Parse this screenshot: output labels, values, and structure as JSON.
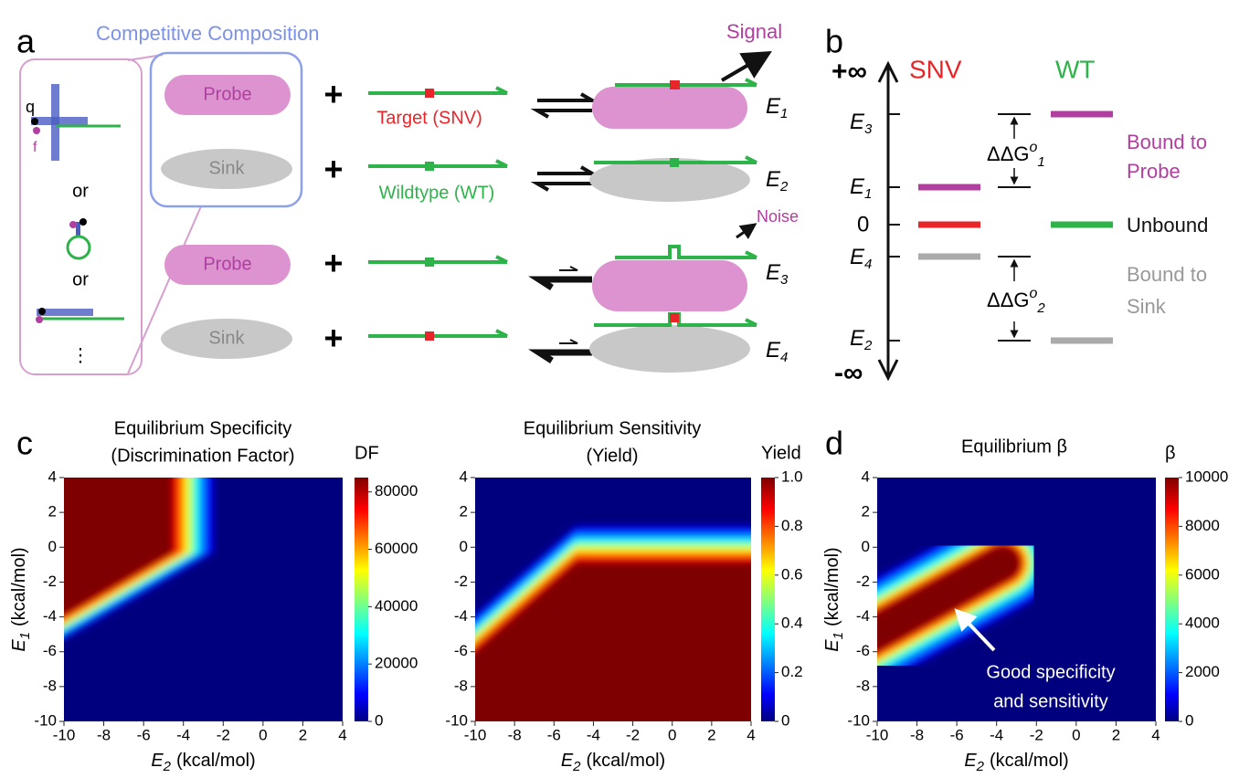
{
  "panel_a": {
    "label": "a",
    "group_title": "Competitive Composition",
    "schematic": {
      "q": "q",
      "f": "f",
      "or": [
        "or",
        "or"
      ],
      "more": "⋮"
    },
    "rows": [
      {
        "reagent": "Probe",
        "plus": "+",
        "strand": "Target (SNV)",
        "energy": "E",
        "sub": "1"
      },
      {
        "reagent": "Sink",
        "plus": "+",
        "strand": "Wildtype (WT)",
        "energy": "E",
        "sub": "2"
      },
      {
        "reagent": "Probe",
        "plus": "+",
        "energy": "E",
        "sub": "3"
      },
      {
        "reagent": "Sink",
        "plus": "+",
        "energy": "E",
        "sub": "4"
      }
    ],
    "signal": "Signal",
    "noise": "Noise"
  },
  "panel_b": {
    "label": "b",
    "top": "+∞",
    "bottom": "-∞",
    "snv": "SNV",
    "wt": "WT",
    "levels": [
      {
        "energy": "E",
        "sub": "3"
      },
      {
        "energy": "E",
        "sub": "1"
      },
      {
        "energy": 0
      },
      {
        "energy": "E",
        "sub": "4"
      },
      {
        "energy": "E",
        "sub": "2"
      }
    ],
    "ddg": [
      {
        "text": "ΔΔG",
        "sup": "o",
        "sub": "1"
      },
      {
        "text": "ΔΔG",
        "sup": "o",
        "sub": "2"
      }
    ],
    "states": [
      [
        "Bound to",
        "Probe"
      ],
      [
        "Unbound"
      ],
      [
        "Bound to",
        "Sink"
      ]
    ]
  },
  "panel_c": {
    "label": "c"
  },
  "panel_d": {
    "label": "d"
  },
  "chart_data": [
    {
      "type": "heatmap",
      "title": "Equilibrium Specificity",
      "subtitle": "(Discrimination Factor)",
      "xlabel": {
        "var": "E",
        "sub": "2",
        "unit": "(kcal/mol)"
      },
      "ylabel": {
        "var": "E",
        "sub": "1",
        "unit": "(kcal/mol)"
      },
      "xlim": [
        -10,
        4
      ],
      "ylim": [
        -10,
        4
      ],
      "xticks": [
        -10,
        -8,
        -6,
        -4,
        -2,
        0,
        2,
        4
      ],
      "yticks": [
        -10,
        -8,
        -6,
        -4,
        -2,
        0,
        2,
        4
      ],
      "colormap": "jet",
      "colorbar": {
        "label": "DF",
        "lim": [
          0,
          85000
        ],
        "ticks": [
          0,
          20000,
          40000,
          60000,
          80000
        ]
      }
    },
    {
      "type": "heatmap",
      "title": "Equilibrium Sensitivity",
      "subtitle": "(Yield)",
      "xlabel": {
        "var": "E",
        "sub": "2",
        "unit": "(kcal/mol)"
      },
      "xlim": [
        -10,
        4
      ],
      "ylim": [
        -10,
        4
      ],
      "xticks": [
        -10,
        -8,
        -6,
        -4,
        -2,
        0,
        2,
        4
      ],
      "yticks": [
        -10,
        -8,
        -6,
        -4,
        -2,
        0,
        2,
        4
      ],
      "colormap": "jet",
      "colorbar": {
        "label": "Yield",
        "lim": [
          0,
          1
        ],
        "ticks": [
          0,
          0.2,
          0.4,
          0.6,
          0.8,
          {
            "value": 1,
            "label": "1.0"
          }
        ]
      }
    },
    {
      "type": "heatmap",
      "title": "Equilibrium β",
      "xlabel": {
        "var": "E",
        "sub": "2",
        "unit": "(kcal/mol)"
      },
      "ylabel": {
        "var": "E",
        "sub": "1",
        "unit": "(kcal/mol)"
      },
      "xlim": [
        -10,
        4
      ],
      "ylim": [
        -10,
        4
      ],
      "xticks": [
        -10,
        -8,
        -6,
        -4,
        -2,
        0,
        2,
        4
      ],
      "yticks": [
        -10,
        -8,
        -6,
        -4,
        -2,
        0,
        2,
        4
      ],
      "colormap": "jet",
      "colorbar": {
        "label": "β",
        "lim": [
          0,
          10000
        ],
        "ticks": [
          0,
          2000,
          4000,
          6000,
          8000,
          10000
        ]
      },
      "annotation": [
        "Good specificity",
        "and sensitivity"
      ]
    }
  ]
}
